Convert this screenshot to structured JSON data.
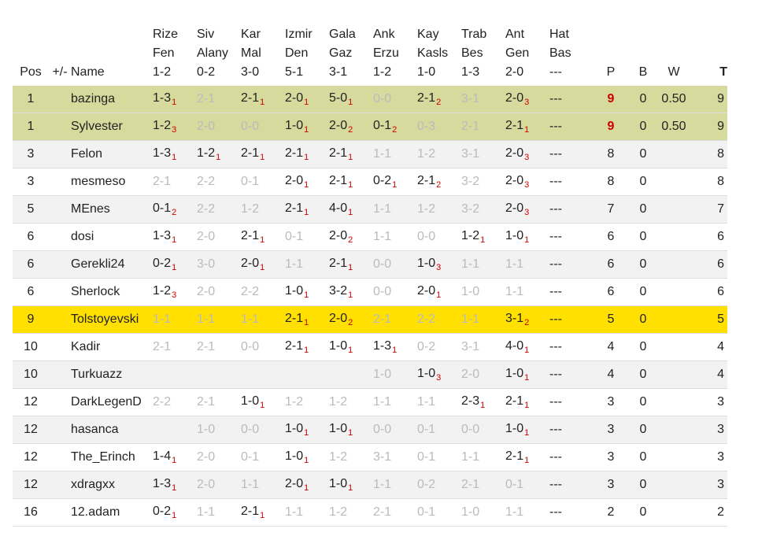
{
  "headers": {
    "pos": "Pos",
    "pm": "+/-",
    "name": "Name",
    "matches": [
      {
        "l1": "Rize",
        "l2": "Fen",
        "score": "1-2"
      },
      {
        "l1": "Siv",
        "l2": "Alany",
        "score": "0-2"
      },
      {
        "l1": "Kar",
        "l2": "Mal",
        "score": "3-0"
      },
      {
        "l1": "Izmir",
        "l2": "Den",
        "score": "5-1"
      },
      {
        "l1": "Gala",
        "l2": "Gaz",
        "score": "3-1"
      },
      {
        "l1": "Ank",
        "l2": "Erzu",
        "score": "1-2"
      },
      {
        "l1": "Kay",
        "l2": "Kasls",
        "score": "1-0"
      },
      {
        "l1": "Trab",
        "l2": "Bes",
        "score": "1-3"
      },
      {
        "l1": "Ant",
        "l2": "Gen",
        "score": "2-0"
      },
      {
        "l1": "Hat",
        "l2": "Bas",
        "score": "---"
      }
    ],
    "p": "P",
    "b": "B",
    "w": "W",
    "t": "T"
  },
  "rows": [
    {
      "pos": "1",
      "name": "bazinga",
      "hl": "leader",
      "p": "9",
      "pred": true,
      "b": "0",
      "w": "0.50",
      "t": "9",
      "picks": [
        {
          "s": "1-3",
          "sub": "1"
        },
        {
          "s": "2-1",
          "dim": true
        },
        {
          "s": "2-1",
          "sub": "1"
        },
        {
          "s": "2-0",
          "sub": "1"
        },
        {
          "s": "5-0",
          "sub": "1"
        },
        {
          "s": "0-0",
          "dim": true
        },
        {
          "s": "2-1",
          "sub": "2"
        },
        {
          "s": "3-1",
          "dim": true
        },
        {
          "s": "2-0",
          "sub": "3"
        },
        {
          "s": "---"
        }
      ]
    },
    {
      "pos": "1",
      "name": "Sylvester",
      "hl": "leader",
      "p": "9",
      "pred": true,
      "b": "0",
      "w": "0.50",
      "t": "9",
      "picks": [
        {
          "s": "1-2",
          "sub": "3"
        },
        {
          "s": "2-0",
          "dim": true
        },
        {
          "s": "0-0",
          "dim": true
        },
        {
          "s": "1-0",
          "sub": "1"
        },
        {
          "s": "2-0",
          "sub": "2"
        },
        {
          "s": "0-1",
          "sub": "2"
        },
        {
          "s": "0-3",
          "dim": true
        },
        {
          "s": "2-1",
          "dim": true
        },
        {
          "s": "2-1",
          "sub": "1"
        },
        {
          "s": "---"
        }
      ]
    },
    {
      "pos": "3",
      "name": "Felon",
      "hl": "alt",
      "p": "8",
      "b": "0",
      "w": "",
      "t": "8",
      "picks": [
        {
          "s": "1-3",
          "sub": "1"
        },
        {
          "s": "1-2",
          "sub": "1"
        },
        {
          "s": "2-1",
          "sub": "1"
        },
        {
          "s": "2-1",
          "sub": "1"
        },
        {
          "s": "2-1",
          "sub": "1"
        },
        {
          "s": "1-1",
          "dim": true
        },
        {
          "s": "1-2",
          "dim": true
        },
        {
          "s": "3-1",
          "dim": true
        },
        {
          "s": "2-0",
          "sub": "3"
        },
        {
          "s": "---"
        }
      ]
    },
    {
      "pos": "3",
      "name": "mesmeso",
      "hl": "",
      "p": "8",
      "b": "0",
      "w": "",
      "t": "8",
      "picks": [
        {
          "s": "2-1",
          "dim": true
        },
        {
          "s": "2-2",
          "dim": true
        },
        {
          "s": "0-1",
          "dim": true
        },
        {
          "s": "2-0",
          "sub": "1"
        },
        {
          "s": "2-1",
          "sub": "1"
        },
        {
          "s": "0-2",
          "sub": "1"
        },
        {
          "s": "2-1",
          "sub": "2"
        },
        {
          "s": "3-2",
          "dim": true
        },
        {
          "s": "2-0",
          "sub": "3"
        },
        {
          "s": "---"
        }
      ]
    },
    {
      "pos": "5",
      "name": "MEnes",
      "hl": "alt",
      "p": "7",
      "b": "0",
      "w": "",
      "t": "7",
      "picks": [
        {
          "s": "0-1",
          "sub": "2"
        },
        {
          "s": "2-2",
          "dim": true
        },
        {
          "s": "1-2",
          "dim": true
        },
        {
          "s": "2-1",
          "sub": "1"
        },
        {
          "s": "4-0",
          "sub": "1"
        },
        {
          "s": "1-1",
          "dim": true
        },
        {
          "s": "1-2",
          "dim": true
        },
        {
          "s": "3-2",
          "dim": true
        },
        {
          "s": "2-0",
          "sub": "3"
        },
        {
          "s": "---"
        }
      ]
    },
    {
      "pos": "6",
      "name": "dosi",
      "hl": "",
      "p": "6",
      "b": "0",
      "w": "",
      "t": "6",
      "picks": [
        {
          "s": "1-3",
          "sub": "1"
        },
        {
          "s": "2-0",
          "dim": true
        },
        {
          "s": "2-1",
          "sub": "1"
        },
        {
          "s": "0-1",
          "dim": true
        },
        {
          "s": "2-0",
          "sub": "2"
        },
        {
          "s": "1-1",
          "dim": true
        },
        {
          "s": "0-0",
          "dim": true
        },
        {
          "s": "1-2",
          "sub": "1"
        },
        {
          "s": "1-0",
          "sub": "1"
        },
        {
          "s": "---"
        }
      ]
    },
    {
      "pos": "6",
      "name": "Gerekli24",
      "hl": "alt",
      "p": "6",
      "b": "0",
      "w": "",
      "t": "6",
      "picks": [
        {
          "s": "0-2",
          "sub": "1"
        },
        {
          "s": "3-0",
          "dim": true
        },
        {
          "s": "2-0",
          "sub": "1"
        },
        {
          "s": "1-1",
          "dim": true
        },
        {
          "s": "2-1",
          "sub": "1"
        },
        {
          "s": "0-0",
          "dim": true
        },
        {
          "s": "1-0",
          "sub": "3"
        },
        {
          "s": "1-1",
          "dim": true
        },
        {
          "s": "1-1",
          "dim": true
        },
        {
          "s": "---"
        }
      ]
    },
    {
      "pos": "6",
      "name": "Sherlock",
      "hl": "",
      "p": "6",
      "b": "0",
      "w": "",
      "t": "6",
      "picks": [
        {
          "s": "1-2",
          "sub": "3"
        },
        {
          "s": "2-0",
          "dim": true
        },
        {
          "s": "2-2",
          "dim": true
        },
        {
          "s": "1-0",
          "sub": "1"
        },
        {
          "s": "3-2",
          "sub": "1"
        },
        {
          "s": "0-0",
          "dim": true
        },
        {
          "s": "2-0",
          "sub": "1"
        },
        {
          "s": "1-0",
          "dim": true
        },
        {
          "s": "1-1",
          "dim": true
        },
        {
          "s": "---"
        }
      ]
    },
    {
      "pos": "9",
      "name": "Tolstoyevski",
      "hl": "me",
      "p": "5",
      "b": "0",
      "w": "",
      "t": "5",
      "picks": [
        {
          "s": "1-1",
          "dim": true
        },
        {
          "s": "1-1",
          "dim": true
        },
        {
          "s": "1-1",
          "dim": true
        },
        {
          "s": "2-1",
          "sub": "1"
        },
        {
          "s": "2-0",
          "sub": "2"
        },
        {
          "s": "2-1",
          "dim": true
        },
        {
          "s": "2-2",
          "dim": true
        },
        {
          "s": "1-1",
          "dim": true
        },
        {
          "s": "3-1",
          "sub": "2"
        },
        {
          "s": "---"
        }
      ]
    },
    {
      "pos": "10",
      "name": "Kadir",
      "hl": "",
      "p": "4",
      "b": "0",
      "w": "",
      "t": "4",
      "picks": [
        {
          "s": "2-1",
          "dim": true
        },
        {
          "s": "2-1",
          "dim": true
        },
        {
          "s": "0-0",
          "dim": true
        },
        {
          "s": "2-1",
          "sub": "1"
        },
        {
          "s": "1-0",
          "sub": "1"
        },
        {
          "s": "1-3",
          "sub": "1"
        },
        {
          "s": "0-2",
          "dim": true
        },
        {
          "s": "3-1",
          "dim": true
        },
        {
          "s": "4-0",
          "sub": "1"
        },
        {
          "s": "---"
        }
      ]
    },
    {
      "pos": "10",
      "name": "Turkuazz",
      "hl": "alt",
      "p": "4",
      "b": "0",
      "w": "",
      "t": "4",
      "picks": [
        {
          "s": ""
        },
        {
          "s": ""
        },
        {
          "s": ""
        },
        {
          "s": ""
        },
        {
          "s": ""
        },
        {
          "s": "1-0",
          "dim": true
        },
        {
          "s": "1-0",
          "sub": "3"
        },
        {
          "s": "2-0",
          "dim": true
        },
        {
          "s": "1-0",
          "sub": "1"
        },
        {
          "s": "---"
        }
      ]
    },
    {
      "pos": "12",
      "name": "DarkLegenD",
      "hl": "",
      "p": "3",
      "b": "0",
      "w": "",
      "t": "3",
      "picks": [
        {
          "s": "2-2",
          "dim": true
        },
        {
          "s": "2-1",
          "dim": true
        },
        {
          "s": "1-0",
          "sub": "1"
        },
        {
          "s": "1-2",
          "dim": true
        },
        {
          "s": "1-2",
          "dim": true
        },
        {
          "s": "1-1",
          "dim": true
        },
        {
          "s": "1-1",
          "dim": true
        },
        {
          "s": "2-3",
          "sub": "1"
        },
        {
          "s": "2-1",
          "sub": "1"
        },
        {
          "s": "---"
        }
      ]
    },
    {
      "pos": "12",
      "name": "hasanca",
      "hl": "alt",
      "p": "3",
      "b": "0",
      "w": "",
      "t": "3",
      "picks": [
        {
          "s": ""
        },
        {
          "s": "1-0",
          "dim": true
        },
        {
          "s": "0-0",
          "dim": true
        },
        {
          "s": "1-0",
          "sub": "1"
        },
        {
          "s": "1-0",
          "sub": "1"
        },
        {
          "s": "0-0",
          "dim": true
        },
        {
          "s": "0-1",
          "dim": true
        },
        {
          "s": "0-0",
          "dim": true
        },
        {
          "s": "1-0",
          "sub": "1"
        },
        {
          "s": "---"
        }
      ]
    },
    {
      "pos": "12",
      "name": "The_Erinch",
      "hl": "",
      "p": "3",
      "b": "0",
      "w": "",
      "t": "3",
      "picks": [
        {
          "s": "1-4",
          "sub": "1"
        },
        {
          "s": "2-0",
          "dim": true
        },
        {
          "s": "0-1",
          "dim": true
        },
        {
          "s": "1-0",
          "sub": "1"
        },
        {
          "s": "1-2",
          "dim": true
        },
        {
          "s": "3-1",
          "dim": true
        },
        {
          "s": "0-1",
          "dim": true
        },
        {
          "s": "1-1",
          "dim": true
        },
        {
          "s": "2-1",
          "sub": "1"
        },
        {
          "s": "---"
        }
      ]
    },
    {
      "pos": "12",
      "name": "xdragxx",
      "hl": "alt",
      "p": "3",
      "b": "0",
      "w": "",
      "t": "3",
      "picks": [
        {
          "s": "1-3",
          "sub": "1"
        },
        {
          "s": "2-0",
          "dim": true
        },
        {
          "s": "1-1",
          "dim": true
        },
        {
          "s": "2-0",
          "sub": "1"
        },
        {
          "s": "1-0",
          "sub": "1"
        },
        {
          "s": "1-1",
          "dim": true
        },
        {
          "s": "0-2",
          "dim": true
        },
        {
          "s": "2-1",
          "dim": true
        },
        {
          "s": "0-1",
          "dim": true
        },
        {
          "s": "---"
        }
      ]
    },
    {
      "pos": "16",
      "name": "12.adam",
      "hl": "",
      "p": "2",
      "b": "0",
      "w": "",
      "t": "2",
      "picks": [
        {
          "s": "0-2",
          "sub": "1"
        },
        {
          "s": "1-1",
          "dim": true
        },
        {
          "s": "2-1",
          "sub": "1"
        },
        {
          "s": "1-1",
          "dim": true
        },
        {
          "s": "1-2",
          "dim": true
        },
        {
          "s": "2-1",
          "dim": true
        },
        {
          "s": "0-1",
          "dim": true
        },
        {
          "s": "1-0",
          "dim": true
        },
        {
          "s": "1-1",
          "dim": true
        },
        {
          "s": "---"
        }
      ]
    }
  ]
}
